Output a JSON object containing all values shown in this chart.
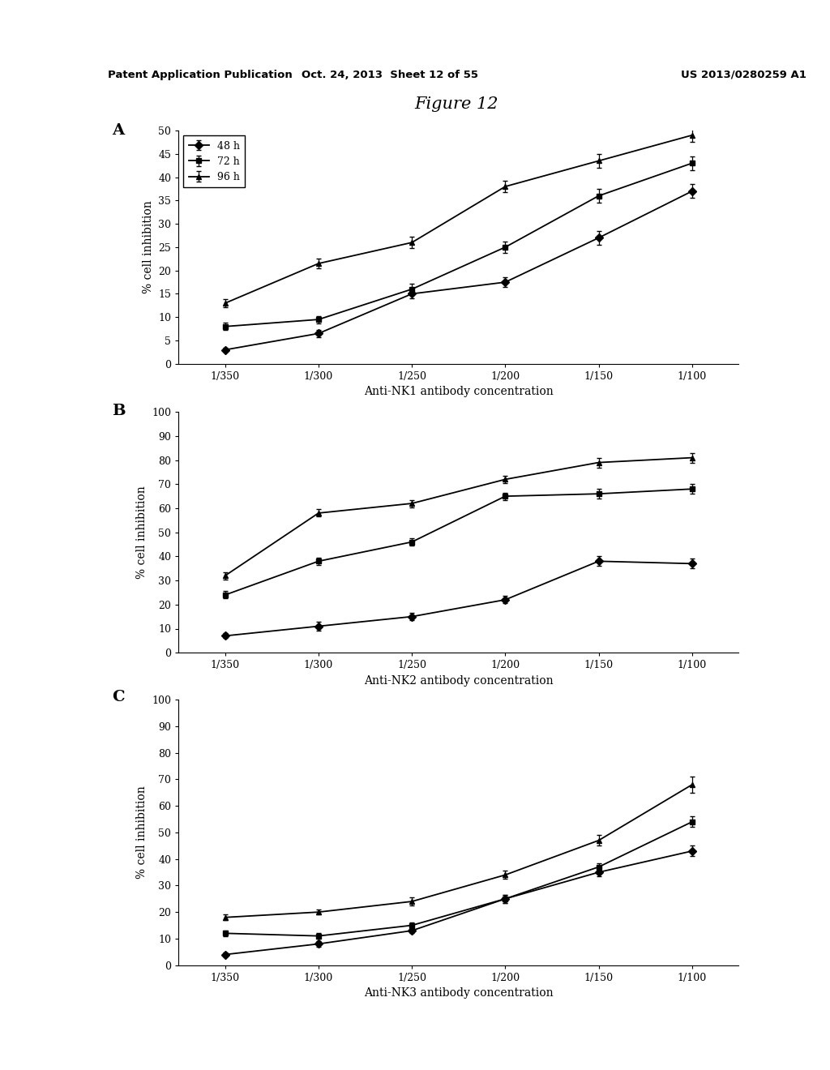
{
  "x_labels": [
    "1/350",
    "1/300",
    "1/250",
    "1/200",
    "1/150",
    "1/100"
  ],
  "x_positions": [
    0,
    1,
    2,
    3,
    4,
    5
  ],
  "panel_A": {
    "label": "A",
    "xlabel": "Anti-NK1 antibody concentration",
    "ylabel": "% cell inhibition",
    "ylim": [
      0,
      50
    ],
    "yticks": [
      0,
      5,
      10,
      15,
      20,
      25,
      30,
      35,
      40,
      45,
      50
    ],
    "series": [
      {
        "label": "48 h",
        "marker": "D",
        "values": [
          3,
          6.5,
          15,
          17.5,
          27,
          37
        ],
        "yerr": [
          0.5,
          0.8,
          1.0,
          1.0,
          1.5,
          1.5
        ]
      },
      {
        "label": "72 h",
        "marker": "s",
        "values": [
          8,
          9.5,
          16,
          25,
          36,
          43
        ],
        "yerr": [
          0.8,
          0.8,
          1.2,
          1.2,
          1.5,
          1.5
        ]
      },
      {
        "label": "96 h",
        "marker": "^",
        "values": [
          13,
          21.5,
          26,
          38,
          43.5,
          49
        ],
        "yerr": [
          0.8,
          1.0,
          1.2,
          1.2,
          1.5,
          1.5
        ]
      }
    ]
  },
  "panel_B": {
    "label": "B",
    "xlabel": "Anti-NK2 antibody concentration",
    "ylabel": "% cell inhibition",
    "ylim": [
      0,
      100
    ],
    "yticks": [
      0,
      10,
      20,
      30,
      40,
      50,
      60,
      70,
      80,
      90,
      100
    ],
    "series": [
      {
        "label": "48 h",
        "marker": "D",
        "values": [
          7,
          11,
          15,
          22,
          38,
          37
        ],
        "yerr": [
          1.0,
          2.0,
          1.5,
          1.5,
          2.0,
          2.0
        ]
      },
      {
        "label": "72 h",
        "marker": "s",
        "values": [
          24,
          38,
          46,
          65,
          66,
          68
        ],
        "yerr": [
          1.5,
          1.5,
          1.5,
          1.5,
          2.0,
          2.0
        ]
      },
      {
        "label": "96 h",
        "marker": "^",
        "values": [
          32,
          58,
          62,
          72,
          79,
          81
        ],
        "yerr": [
          1.5,
          1.5,
          1.5,
          1.5,
          2.0,
          2.0
        ]
      }
    ]
  },
  "panel_C": {
    "label": "C",
    "xlabel": "Anti-NK3 antibody concentration",
    "ylabel": "% cell inhibition",
    "ylim": [
      0,
      100
    ],
    "yticks": [
      0,
      10,
      20,
      30,
      40,
      50,
      60,
      70,
      80,
      90,
      100
    ],
    "series": [
      {
        "label": "48 h",
        "marker": "D",
        "values": [
          4,
          8,
          13,
          25,
          35,
          43
        ],
        "yerr": [
          0.8,
          1.0,
          1.0,
          1.5,
          1.5,
          2.0
        ]
      },
      {
        "label": "72 h",
        "marker": "s",
        "values": [
          12,
          11,
          15,
          25,
          37,
          54
        ],
        "yerr": [
          1.0,
          1.0,
          1.0,
          1.5,
          1.5,
          2.0
        ]
      },
      {
        "label": "96 h",
        "marker": "^",
        "values": [
          18,
          20,
          24,
          34,
          47,
          68
        ],
        "yerr": [
          1.0,
          1.0,
          1.5,
          1.5,
          2.0,
          3.0
        ]
      }
    ]
  },
  "figure_title": "Figure 12",
  "header_left": "Patent Application Publication",
  "header_center": "Oct. 24, 2013  Sheet 12 of 55",
  "header_right": "US 2013/0280259 A1",
  "line_color": "black",
  "marker_size": 5,
  "bg_color": "#ffffff"
}
